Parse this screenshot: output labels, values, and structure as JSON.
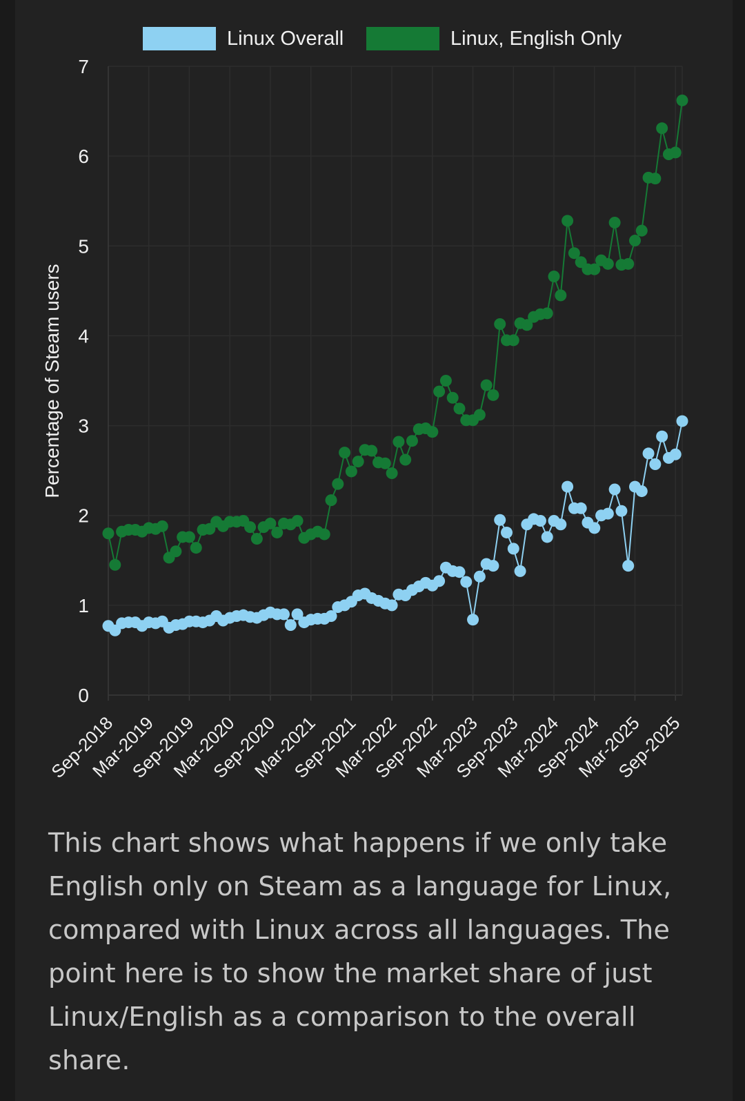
{
  "chart_data": {
    "type": "line",
    "title": "",
    "xlabel": "",
    "ylabel": "Percentage of Steam users",
    "ylim": [
      0,
      7
    ],
    "yticks": [
      0,
      1,
      2,
      3,
      4,
      5,
      6,
      7
    ],
    "grid": true,
    "legend_position": "top-center",
    "x_tick_labels": [
      "Sep-2018",
      "Mar-2019",
      "Sep-2019",
      "Mar-2020",
      "Sep-2020",
      "Mar-2021",
      "Sep-2021",
      "Mar-2022",
      "Sep-2022",
      "Mar-2023",
      "Sep-2023",
      "Mar-2024",
      "Sep-2024",
      "Mar-2025",
      "Sep-2025"
    ],
    "x_start": "Sep-2018",
    "x_interval": "monthly",
    "n_points": 86,
    "series": [
      {
        "name": "Linux Overall",
        "color": "#8ed1f2",
        "values": [
          0.77,
          0.72,
          0.8,
          0.81,
          0.81,
          0.77,
          0.81,
          0.8,
          0.82,
          0.75,
          0.78,
          0.79,
          0.82,
          0.82,
          0.81,
          0.83,
          0.88,
          0.83,
          0.86,
          0.88,
          0.89,
          0.87,
          0.86,
          0.89,
          0.92,
          0.9,
          0.9,
          0.78,
          0.9,
          0.81,
          0.84,
          0.85,
          0.85,
          0.88,
          0.98,
          1.0,
          1.04,
          1.11,
          1.13,
          1.08,
          1.05,
          1.02,
          1.0,
          1.12,
          1.11,
          1.17,
          1.21,
          1.25,
          1.22,
          1.27,
          1.42,
          1.38,
          1.37,
          1.26,
          0.84,
          1.32,
          1.46,
          1.44,
          1.95,
          1.81,
          1.63,
          1.38,
          1.9,
          1.96,
          1.94,
          1.76,
          1.94,
          1.9,
          2.32,
          2.08,
          2.08,
          1.92,
          1.86,
          2.0,
          2.02,
          2.29,
          2.05,
          1.44,
          2.32,
          2.27,
          2.69,
          2.57,
          2.88,
          2.64,
          2.68,
          3.05
        ]
      },
      {
        "name": "Linux, English Only",
        "color": "#157a35",
        "values": [
          1.8,
          1.45,
          1.82,
          1.84,
          1.84,
          1.82,
          1.86,
          1.85,
          1.88,
          1.53,
          1.6,
          1.76,
          1.76,
          1.64,
          1.84,
          1.85,
          1.93,
          1.88,
          1.93,
          1.93,
          1.94,
          1.87,
          1.74,
          1.87,
          1.91,
          1.81,
          1.91,
          1.9,
          1.94,
          1.75,
          1.79,
          1.82,
          1.79,
          2.17,
          2.35,
          2.7,
          2.49,
          2.6,
          2.73,
          2.72,
          2.59,
          2.58,
          2.47,
          2.82,
          2.62,
          2.83,
          2.96,
          2.97,
          2.93,
          3.38,
          3.5,
          3.31,
          3.19,
          3.06,
          3.06,
          3.12,
          3.45,
          3.34,
          4.13,
          3.95,
          3.95,
          4.14,
          4.12,
          4.21,
          4.24,
          4.25,
          4.66,
          4.45,
          5.28,
          4.92,
          4.82,
          4.74,
          4.74,
          4.84,
          4.8,
          5.26,
          4.79,
          4.8,
          5.06,
          5.17,
          5.76,
          5.75,
          6.31,
          6.02,
          6.04,
          6.62
        ]
      }
    ]
  },
  "caption": "This chart shows what happens if we only take English only on Steam as a language for Linux, compared with Linux across all languages. The point here is to show the market share of just Linux/English as a comparison to the overall share."
}
